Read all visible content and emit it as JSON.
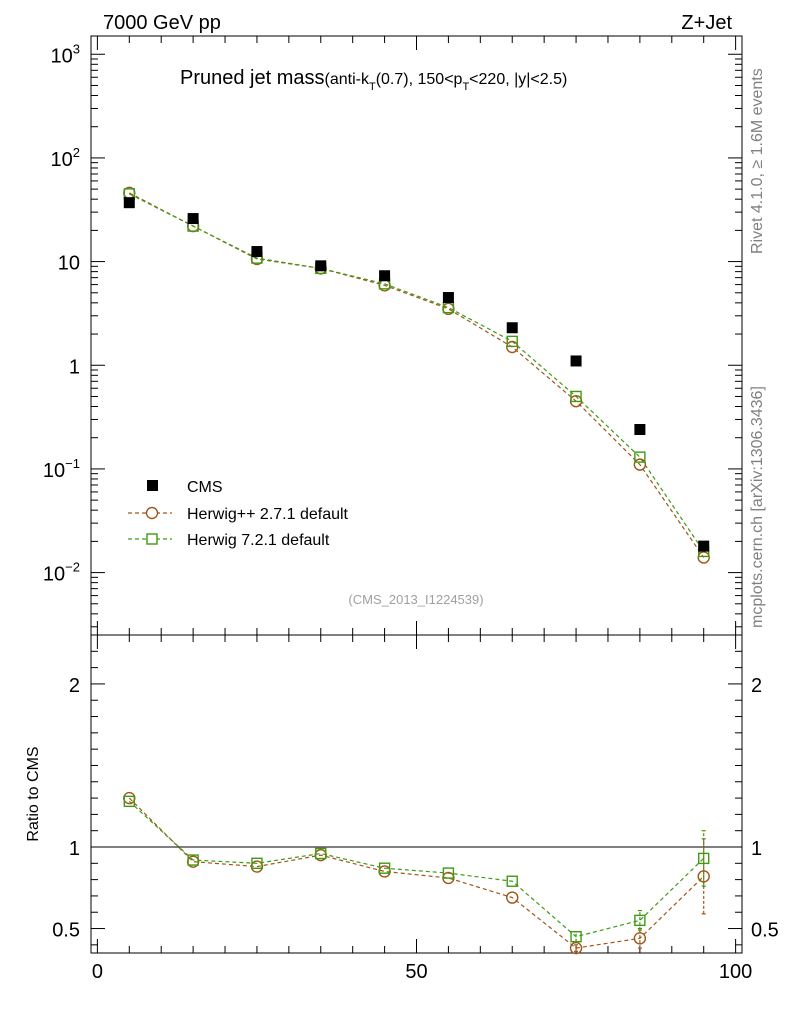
{
  "header": {
    "energy_label": "7000 GeV pp",
    "process_label": "Z+Jet"
  },
  "side_labels": {
    "rivet": "Rivet 4.1.0, ≥ 1.6M events",
    "mcplots": "mcplots.cern.ch [arXiv:1306.3436]"
  },
  "chart_data": [
    {
      "type": "scatter",
      "panel": "main",
      "title": "Pruned jet mass",
      "title_detail": {
        "prefix": "(anti-k",
        "sub1": "T",
        "mid": "(0.7), 150<p",
        "sub2": "T",
        "suffix": "<220, |y|<2.5)"
      },
      "annotation": "(CMS_2013_I1224539)",
      "yscale": "log",
      "ylim": [
        0.0025,
        1500
      ],
      "xlim": [
        -1,
        101
      ],
      "ytick_labels": [
        {
          "base": "10",
          "exp": "3"
        },
        {
          "base": "10",
          "exp": "2"
        },
        {
          "base": "10",
          "exp": ""
        },
        {
          "base": "1",
          "exp": ""
        },
        {
          "base": "10",
          "exp": "−1"
        },
        {
          "base": "10",
          "exp": "−2"
        }
      ],
      "x": [
        5,
        15,
        25,
        35,
        45,
        55,
        65,
        75,
        85,
        95
      ],
      "series": [
        {
          "name": "CMS",
          "marker": "filled-square",
          "color": "#000000",
          "values": [
            37,
            26,
            12.5,
            9.1,
            7.3,
            4.5,
            2.3,
            1.1,
            0.24,
            0.018
          ]
        },
        {
          "name": "Herwig++ 2.7.1 default",
          "marker": "open-circle",
          "color": "#a0561a",
          "values": [
            46,
            22,
            10.6,
            8.6,
            5.9,
            3.5,
            1.5,
            0.45,
            0.11,
            0.014
          ]
        },
        {
          "name": "Herwig 7.2.1 default",
          "marker": "open-square",
          "color": "#3f9a12",
          "values": [
            45,
            22,
            10.8,
            8.6,
            6.1,
            3.6,
            1.7,
            0.5,
            0.13,
            0.016
          ]
        }
      ],
      "legend": "lower-left"
    },
    {
      "type": "line",
      "panel": "ratio",
      "ylabel": "Ratio to CMS",
      "ylim": [
        0.35,
        2.3
      ],
      "xlim": [
        -1,
        101
      ],
      "ytick_labels": [
        "2",
        "1",
        "0.5"
      ],
      "xtick_labels": [
        "0",
        "50",
        "100"
      ],
      "reference_line": 1,
      "x": [
        5,
        15,
        25,
        35,
        45,
        55,
        65,
        75,
        85,
        95
      ],
      "series": [
        {
          "name": "Herwig++ 2.7.1 default",
          "color": "#a0561a",
          "marker": "open-circle",
          "values": [
            1.3,
            0.91,
            0.88,
            0.95,
            0.85,
            0.81,
            0.69,
            0.38,
            0.44,
            0.82
          ],
          "err_low": [
            0.01,
            0.01,
            0.01,
            0.01,
            0.01,
            0.01,
            0.01,
            0.02,
            0.06,
            0.23
          ],
          "err_high": [
            0.01,
            0.01,
            0.01,
            0.01,
            0.01,
            0.01,
            0.01,
            0.02,
            0.06,
            0.23
          ]
        },
        {
          "name": "Herwig 7.2.1 default",
          "color": "#3f9a12",
          "marker": "open-square",
          "values": [
            1.28,
            0.92,
            0.9,
            0.96,
            0.87,
            0.84,
            0.79,
            0.45,
            0.55,
            0.93
          ],
          "err_low": [
            0.01,
            0.01,
            0.01,
            0.01,
            0.01,
            0.01,
            0.01,
            0.03,
            0.06,
            0.17
          ],
          "err_high": [
            0.01,
            0.01,
            0.01,
            0.01,
            0.01,
            0.01,
            0.01,
            0.03,
            0.06,
            0.17
          ]
        }
      ]
    }
  ]
}
